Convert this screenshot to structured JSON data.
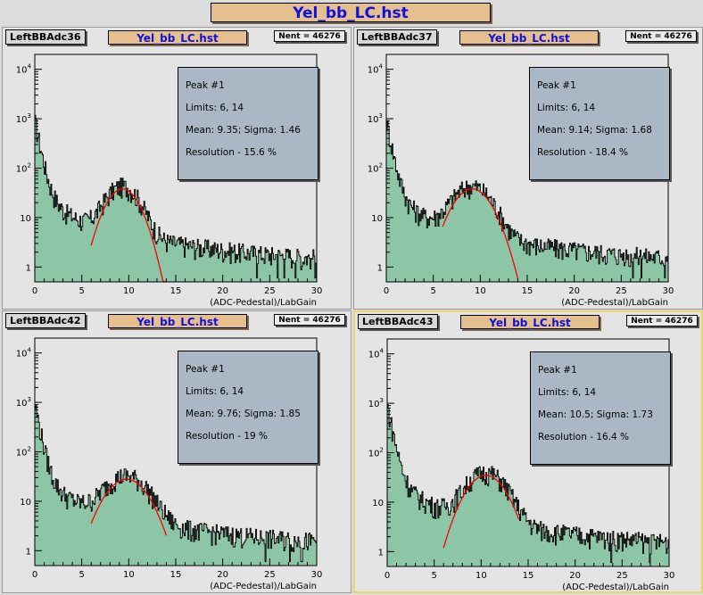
{
  "header": {
    "title": "Yel_bb_LC.hst"
  },
  "colors": {
    "fill": "#8cc6a6",
    "fit": "#ff0000",
    "title_bg": "#e6bf8e",
    "title_text": "#1010e0",
    "stats_bg": "#a9b8c4"
  },
  "pads": [
    {
      "name": "LeftBBAdc36",
      "title": "Yel_bb_LC.hst",
      "nent": "Nent = 46276",
      "fit": {
        "peak": "Peak #1",
        "limits": "Limits: 6, 14",
        "mean": "Mean: 9.35; Sigma: 1.46",
        "resolution": "Resolution - 15.6 %"
      }
    },
    {
      "name": "LeftBBAdc37",
      "title": "Yel_bb_LC.hst",
      "nent": "Nent = 46276",
      "fit": {
        "peak": "Peak #1",
        "limits": "Limits: 6, 14",
        "mean": "Mean: 9.14; Sigma: 1.68",
        "resolution": "Resolution - 18.4 %"
      }
    },
    {
      "name": "LeftBBAdc42",
      "title": "Yel_bb_LC.hst",
      "nent": "Nent = 46276",
      "fit": {
        "peak": "Peak #1",
        "limits": "Limits: 6, 14",
        "mean": "Mean: 9.76; Sigma: 1.85",
        "resolution": "Resolution - 19 %"
      }
    },
    {
      "name": "LeftBBAdc43",
      "title": "Yel_bb_LC.hst",
      "nent": "Nent = 46276",
      "fit": {
        "peak": "Peak #1",
        "limits": "Limits: 6, 14",
        "mean": "Mean: 10.5; Sigma: 1.73",
        "resolution": "Resolution - 16.4 %"
      }
    }
  ],
  "chart_data": [
    {
      "type": "histogram",
      "title": "Yel_bb_LC.hst",
      "xlabel": "(ADC-Pedestal)/LabGain",
      "ylabel": "",
      "xlim": [
        0,
        30
      ],
      "ylim": [
        0.5,
        20000
      ],
      "log_y": true,
      "x_ticks": [
        "0",
        "5",
        "10",
        "15",
        "20",
        "25",
        "30"
      ],
      "y_ticks": [
        "1",
        "10",
        "10^2",
        "10^3",
        "10^4"
      ],
      "fit": {
        "type": "gaussian",
        "range": [
          6,
          14
        ],
        "mean": 9.35,
        "sigma": 1.46,
        "peak": 38
      }
    },
    {
      "type": "histogram",
      "title": "Yel_bb_LC.hst",
      "xlabel": "(ADC-Pedestal)/LabGain",
      "ylabel": "",
      "xlim": [
        0,
        30
      ],
      "ylim": [
        0.5,
        20000
      ],
      "log_y": true,
      "x_ticks": [
        "0",
        "5",
        "10",
        "15",
        "20",
        "25",
        "30"
      ],
      "y_ticks": [
        "1",
        "10",
        "10^2",
        "10^3",
        "10^4"
      ],
      "fit": {
        "type": "gaussian",
        "range": [
          6,
          14
        ],
        "mean": 9.14,
        "sigma": 1.68,
        "peak": 38
      }
    },
    {
      "type": "histogram",
      "title": "Yel_bb_LC.hst",
      "xlabel": "(ADC-Pedestal)/LabGain",
      "ylabel": "",
      "xlim": [
        0,
        30
      ],
      "ylim": [
        0.5,
        20000
      ],
      "log_y": true,
      "x_ticks": [
        "0",
        "5",
        "10",
        "15",
        "20",
        "25",
        "30"
      ],
      "y_ticks": [
        "1",
        "10",
        "10^2",
        "10^3",
        "10^4"
      ],
      "fit": {
        "type": "gaussian",
        "range": [
          6,
          14
        ],
        "mean": 9.76,
        "sigma": 1.85,
        "peak": 28
      }
    },
    {
      "type": "histogram",
      "title": "Yel_bb_LC.hst",
      "xlabel": "(ADC-Pedestal)/LabGain",
      "ylabel": "",
      "xlim": [
        0,
        30
      ],
      "ylim": [
        0.5,
        20000
      ],
      "log_y": true,
      "x_ticks": [
        "0",
        "5",
        "10",
        "15",
        "20",
        "25",
        "30"
      ],
      "y_ticks": [
        "1",
        "10",
        "10^2",
        "10^3",
        "10^4"
      ],
      "fit": {
        "type": "gaussian",
        "range": [
          6,
          14
        ],
        "mean": 10.5,
        "sigma": 1.73,
        "peak": 35
      }
    }
  ]
}
